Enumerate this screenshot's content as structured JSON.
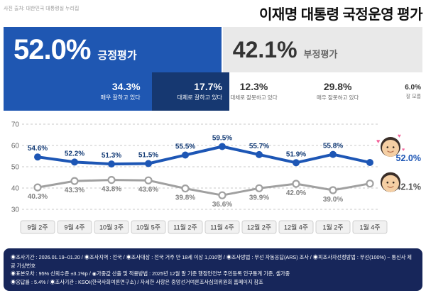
{
  "header": {
    "photo_credit": "사진 출처: 대한민국 대통령실 누리집",
    "title": "이재명 대통령 국정운영 평가"
  },
  "summary": {
    "positive": {
      "value": "52.0%",
      "label": "긍정평가",
      "pct": 52.0
    },
    "negative": {
      "value": "42.1%",
      "label": "부정평가",
      "pct": 42.1
    },
    "breakdown": [
      {
        "value": "34.3%",
        "label": "매우 잘하고 있다",
        "pct": 34.3
      },
      {
        "value": "17.7%",
        "label": "대체로 잘하고 있다",
        "pct": 17.7
      },
      {
        "value": "12.3%",
        "label": "대체로 잘못하고 있다",
        "pct": 12.3
      },
      {
        "value": "29.8%",
        "label": "매우 잘못하고 있다",
        "pct": 29.8
      },
      {
        "value": "6.0%",
        "label": "잘 모름",
        "pct": 6.0
      }
    ]
  },
  "chart_data": {
    "type": "line",
    "categories": [
      "9월 2주",
      "9월 4주",
      "10월 3주",
      "10월 5주",
      "11월 2주",
      "11월 4주",
      "12월 2주",
      "12월 4주",
      "1월 2주",
      "1월 4주"
    ],
    "series": [
      {
        "name": "긍정평가",
        "color": "#1d56b5",
        "label_color": "#123a75",
        "end_label": "52.0%",
        "values": [
          54.6,
          52.2,
          51.3,
          51.5,
          55.5,
          59.5,
          55.7,
          51.9,
          55.8,
          52.0
        ]
      },
      {
        "name": "부정평가",
        "color": "#a0a0a0",
        "label_color": "#808080",
        "end_label": "42.1%",
        "values": [
          40.3,
          43.3,
          43.8,
          43.6,
          39.8,
          36.6,
          39.9,
          42.0,
          39.0,
          42.1
        ]
      }
    ],
    "ylim": [
      30,
      70
    ],
    "yticks": [
      70,
      60,
      50,
      40,
      30
    ],
    "grid": true,
    "legend_position": "none",
    "title": "이재명 대통령 국정운영 평가"
  },
  "footer": {
    "lines": [
      "◉조사기간 : 2026.01.19~01.20 / ◉조사지역 : 전국 / ◉조사대상 : 전국 거주 만 18세 이상 1,010명 / ◉조사방법 : 무선 자동응답(ARS) 조사 / ◉피조사자선정방법 : 무선(100%) ~ 통신사 제공 가상번호",
      "◉표본오차 : 95% 신뢰수준 ±3.1%p / ◉가중값 산출 및 적용방법 : 2025년 12월 말 기준 행정안전부 주민등록 인구통계 기준, 셀가중",
      "◉응답률 : 5.4% / ◉조사기관 : KSOI(한국사회여론연구소) / 자세한 사항은 중앙선거여론조사심의위원회 홈페이지 참조"
    ]
  },
  "colors": {
    "positive_blue": "#1f57b2",
    "deep_navy": "#163871",
    "negative_gray_box": "#e9e9e9",
    "line_blue": "#1d56b5",
    "line_gray": "#a0a0a0",
    "footer_navy": "#17265a"
  }
}
